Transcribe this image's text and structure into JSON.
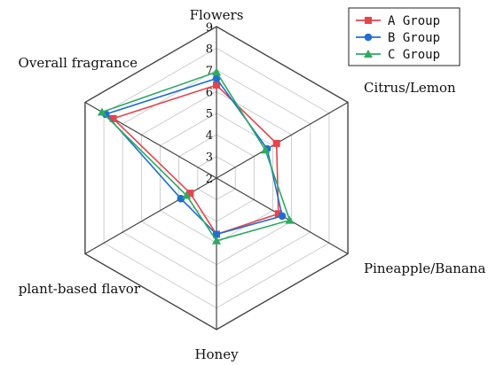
{
  "chart_data": {
    "type": "radar",
    "axes": [
      "Flowers",
      "Citrus/Lemon",
      "Pineapple/Banana",
      "Honey",
      "plant-based flavor",
      "Overall fragrance"
    ],
    "ticks": [
      "2",
      "3",
      "4",
      "5",
      "6",
      "7",
      "8",
      "9"
    ],
    "range": [
      2,
      9
    ],
    "grid": true,
    "legend_position": "top-right",
    "series": [
      {
        "name": "A Group",
        "marker": "square",
        "color": "#e8434b",
        "values": [
          6.3,
          5.2,
          5.3,
          4.6,
          3.4,
          7.5
        ]
      },
      {
        "name": "B Group",
        "marker": "circle",
        "color": "#1f6fd1",
        "values": [
          6.6,
          4.7,
          5.5,
          4.6,
          3.9,
          7.9
        ]
      },
      {
        "name": "C Group",
        "marker": "triangle",
        "color": "#2eaa62",
        "values": [
          6.9,
          4.6,
          5.9,
          4.9,
          3.6,
          8.1
        ]
      }
    ]
  }
}
